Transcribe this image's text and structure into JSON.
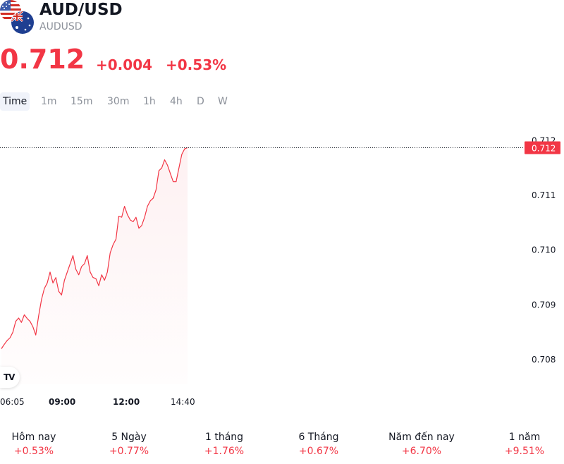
{
  "symbol": {
    "name": "AUD/USD",
    "code": "AUDUSD"
  },
  "quote": {
    "price": "0.712",
    "change": "+0.004",
    "change_pct": "+0.53%"
  },
  "colors": {
    "accent": "#f23645",
    "text": "#131722",
    "muted": "#8c919a"
  },
  "icons": {
    "flags": "us-au-flags-icon",
    "logo": "tradingview-logo-icon"
  },
  "intervals": [
    {
      "label": "Time",
      "active": true
    },
    {
      "label": "1m"
    },
    {
      "label": "15m"
    },
    {
      "label": "30m"
    },
    {
      "label": "1h"
    },
    {
      "label": "4h"
    },
    {
      "label": "D"
    },
    {
      "label": "W"
    }
  ],
  "chart_data": {
    "type": "area",
    "x_ticks": [
      {
        "label": "06:05",
        "bold": false
      },
      {
        "label": "09:00",
        "bold": true
      },
      {
        "label": "12:00",
        "bold": true
      },
      {
        "label": "14:40",
        "bold": false
      }
    ],
    "y_ticks": [
      "0.712",
      "0.711",
      "0.710",
      "0.709",
      "0.708"
    ],
    "ylim": [
      0.70755,
      0.71225
    ],
    "last_price_label": "0.712",
    "last_price": 0.71187,
    "series": [
      {
        "values": [
          0.7082,
          0.70828,
          0.70835,
          0.7084,
          0.7085,
          0.7087,
          0.70876,
          0.70868,
          0.70882,
          0.70875,
          0.7087,
          0.7086,
          0.70845,
          0.7088,
          0.7091,
          0.7093,
          0.7094,
          0.7096,
          0.7094,
          0.7095,
          0.70925,
          0.70918,
          0.70945,
          0.7096,
          0.70975,
          0.7099,
          0.70965,
          0.70955,
          0.7097,
          0.70975,
          0.7099,
          0.7096,
          0.7095,
          0.70948,
          0.70935,
          0.70955,
          0.70945,
          0.7096,
          0.70995,
          0.7101,
          0.7102,
          0.71062,
          0.7106,
          0.7108,
          0.71065,
          0.71055,
          0.71052,
          0.7106,
          0.7104,
          0.71045,
          0.7106,
          0.7108,
          0.7109,
          0.71095,
          0.7111,
          0.71145,
          0.7115,
          0.71165,
          0.71155,
          0.7114,
          0.71125,
          0.71125,
          0.7115,
          0.71175,
          0.71185,
          0.71187
        ]
      }
    ]
  },
  "performance": [
    {
      "label": "Hôm nay",
      "value": "+0.53%"
    },
    {
      "label": "5 Ngày",
      "value": "+0.77%"
    },
    {
      "label": "1 tháng",
      "value": "+1.76%"
    },
    {
      "label": "6 Tháng",
      "value": "+0.67%"
    },
    {
      "label": "Năm đến nay",
      "value": "+6.70%"
    },
    {
      "label": "1 năm",
      "value": "+9.51%"
    }
  ]
}
